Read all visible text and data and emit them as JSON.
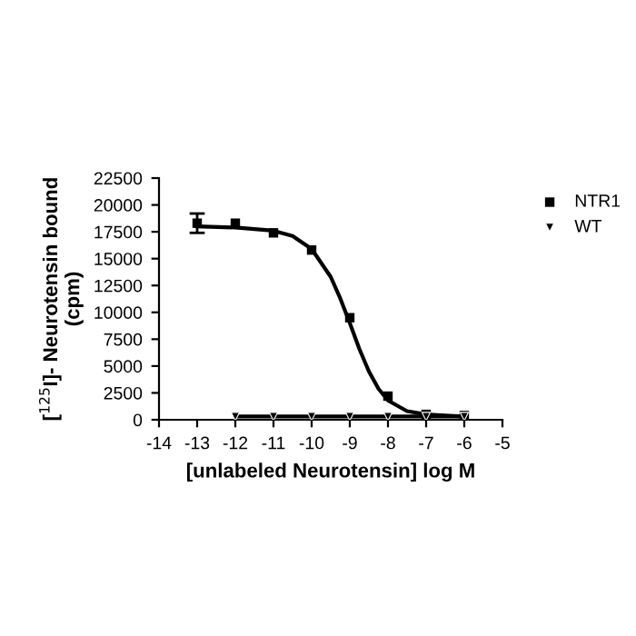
{
  "chart_data": {
    "type": "scatter",
    "xlabel": "[unlabeled Neurotensin] log M",
    "ylabel": "[$^{125}$I]- Neurotensin bound\n(cpm)",
    "xlim": [
      -14,
      -5
    ],
    "xticks": [
      -14,
      -13,
      -12,
      -11,
      -10,
      -9,
      -8,
      -7,
      -6,
      -5
    ],
    "ylim": [
      0,
      22500
    ],
    "yticks": [
      0,
      2500,
      5000,
      7500,
      10000,
      12500,
      15000,
      17500,
      20000,
      22500
    ],
    "grid": false,
    "legend": "top right",
    "series": [
      {
        "name": "NTR1",
        "marker": "square",
        "color": "#000000",
        "x": [
          -13,
          -12,
          -11,
          -10,
          -9,
          -8,
          -7,
          -6
        ],
        "values": [
          18300,
          18300,
          17400,
          15800,
          9500,
          2200,
          500,
          400
        ],
        "errors": [
          900,
          null,
          null,
          null,
          null,
          null,
          null,
          null
        ]
      },
      {
        "name": "WT",
        "marker": "triangle",
        "color": "#000000",
        "x": [
          -12,
          -11,
          -10,
          -9,
          -8,
          -7,
          -6
        ],
        "values": [
          300,
          300,
          300,
          300,
          300,
          300,
          300
        ]
      },
      {
        "type": "line",
        "marker": "none",
        "color": "#000000",
        "x": [
          -13,
          -12,
          -11,
          -10.5,
          -10,
          -9.5,
          -9.25,
          -9,
          -8.75,
          -8.5,
          -8.25,
          -8,
          -7.5,
          -7,
          -6.5,
          -6
        ],
        "values": [
          18000,
          17900,
          17600,
          17100,
          15900,
          13300,
          11300,
          9000,
          6600,
          4500,
          2900,
          1800,
          800,
          500,
          400,
          300
        ]
      },
      {
        "type": "line",
        "marker": "none",
        "color": "#000000",
        "x": [
          -12,
          -6
        ],
        "values": [
          300,
          300
        ]
      }
    ]
  }
}
